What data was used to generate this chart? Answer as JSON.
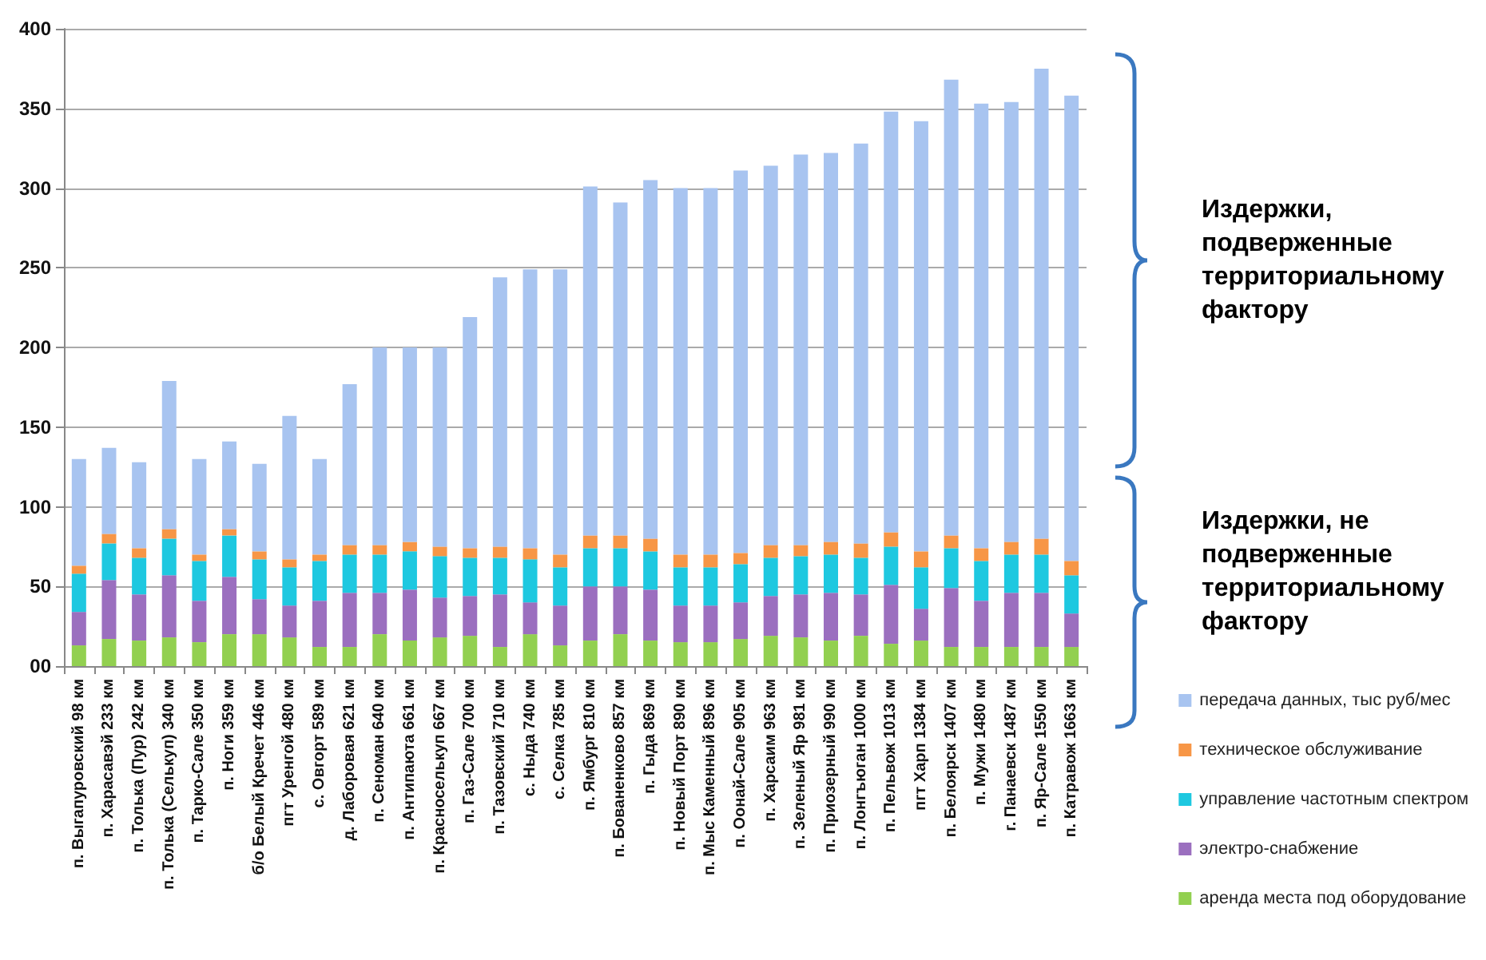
{
  "chart_data": {
    "type": "bar",
    "stacked": true,
    "categories": [
      "п. Выгапуровский 98 км",
      "п. Харасавэй 233 км",
      "п. Толька (Пур) 242 км",
      "п. Толька (Селькуп) 340 км",
      "п. Тарко-Сале 350 км",
      "п. Ноги 359 км",
      "б/о Белый Кречет 446 км",
      "пгт Уренгой 480 км",
      "с. Овгорт 589 км",
      "д. Лаборовая 621 км",
      "п. Сеноман 640 км",
      "п. Антипаюта 661 км",
      "п. Красноселькуп 667 км",
      "п. Газ-Сале 700 км",
      "п. Тазовский 710 км",
      "с. Ныда 740 км",
      "с. Селка 785 км",
      "п. Ямбург 810 км",
      "п. Бованенково 857 км",
      "п. Гыда 869 км",
      "п. Новый Порт 890 км",
      "п. Мыс Каменный 896 км",
      "п. Оонай-Сале 905 км",
      "п. Харсаим 963 км",
      "п. Зеленый Яр 981 км",
      "п. Приозерный 990 км",
      "п. Лонгъюган 1000 км",
      "п. Пельвож 1013 км",
      "пгт Харп 1384 км",
      "п. Белоярск 1407 км",
      "п. Мужи 1480 км",
      "г. Панаевск 1487 км",
      "п. Яр-Сале 1550 км",
      "п. Катравож 1663 км"
    ],
    "series": [
      {
        "name": "аренда места под оборудование",
        "color": "#92d050",
        "values": [
          13,
          17,
          16,
          18,
          15,
          20,
          20,
          18,
          12,
          12,
          20,
          16,
          18,
          19,
          12,
          20,
          13,
          16,
          20,
          16,
          15,
          15,
          17,
          19,
          18,
          16,
          19,
          14,
          16,
          12,
          12,
          12,
          12,
          12
        ]
      },
      {
        "name": "электро-снабжение",
        "color": "#9b6fbf",
        "values": [
          21,
          37,
          29,
          39,
          26,
          36,
          22,
          20,
          29,
          34,
          26,
          32,
          25,
          25,
          33,
          20,
          25,
          34,
          30,
          32,
          23,
          23,
          23,
          25,
          27,
          30,
          26,
          37,
          20,
          37,
          29,
          34,
          34,
          21
        ]
      },
      {
        "name": "управление частотным спектром",
        "color": "#1ec8e0",
        "values": [
          24,
          23,
          23,
          23,
          25,
          26,
          25,
          24,
          25,
          24,
          24,
          24,
          26,
          24,
          23,
          27,
          24,
          24,
          24,
          24,
          24,
          24,
          24,
          24,
          24,
          24,
          23,
          24,
          26,
          25,
          25,
          24,
          24,
          24
        ]
      },
      {
        "name": "техническое обслуживание",
        "color": "#f79646",
        "values": [
          5,
          6,
          6,
          6,
          4,
          4,
          5,
          5,
          4,
          6,
          6,
          6,
          6,
          6,
          7,
          7,
          8,
          8,
          8,
          8,
          8,
          8,
          7,
          8,
          7,
          8,
          9,
          9,
          10,
          8,
          8,
          8,
          10,
          9
        ]
      },
      {
        "name": "передача данных, тыс руб/мес",
        "color": "#a8c4f0",
        "values": [
          67,
          54,
          54,
          93,
          60,
          55,
          55,
          90,
          60,
          101,
          124,
          122,
          125,
          145,
          169,
          175,
          179,
          219,
          209,
          225,
          230,
          230,
          240,
          238,
          245,
          244,
          251,
          264,
          270,
          286,
          279,
          276,
          295,
          292
        ]
      }
    ],
    "ylim": [
      0,
      400
    ],
    "yticks": [
      {
        "value": 0,
        "label": "00"
      },
      50,
      100,
      150,
      200,
      250,
      300,
      350,
      400
    ],
    "grid": "y",
    "legend": "right",
    "annotations": [
      "Издержки, подверженные территориальному фактору",
      "Издержки, не подверженные территориальному фактору"
    ]
  }
}
